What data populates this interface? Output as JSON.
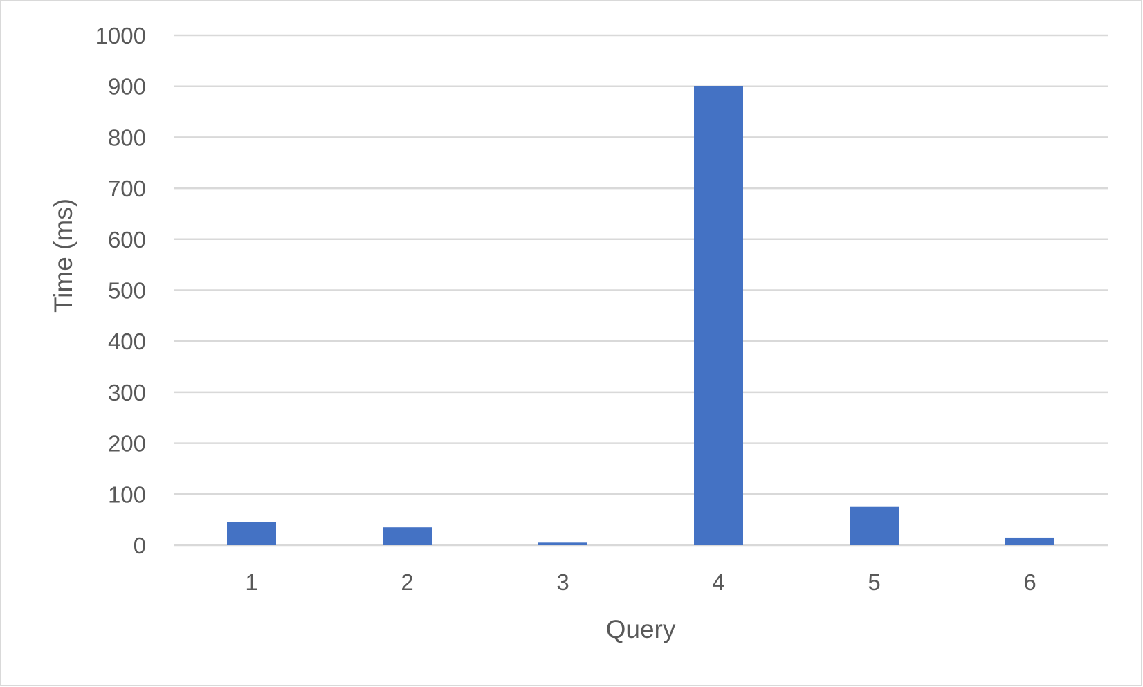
{
  "chart_data": {
    "type": "bar",
    "title": "",
    "xlabel": "Query",
    "ylabel": "Time (ms)",
    "categories": [
      "1",
      "2",
      "3",
      "4",
      "5",
      "6"
    ],
    "values": [
      45,
      35,
      5,
      900,
      75,
      15
    ],
    "ylim": [
      0,
      1000
    ],
    "yticks": [
      0,
      100,
      200,
      300,
      400,
      500,
      600,
      700,
      800,
      900,
      1000
    ],
    "grid": true,
    "legend": "none",
    "bar_color": "#4472C4",
    "grid_color": "#d9d9d9",
    "text_color": "#595959"
  }
}
